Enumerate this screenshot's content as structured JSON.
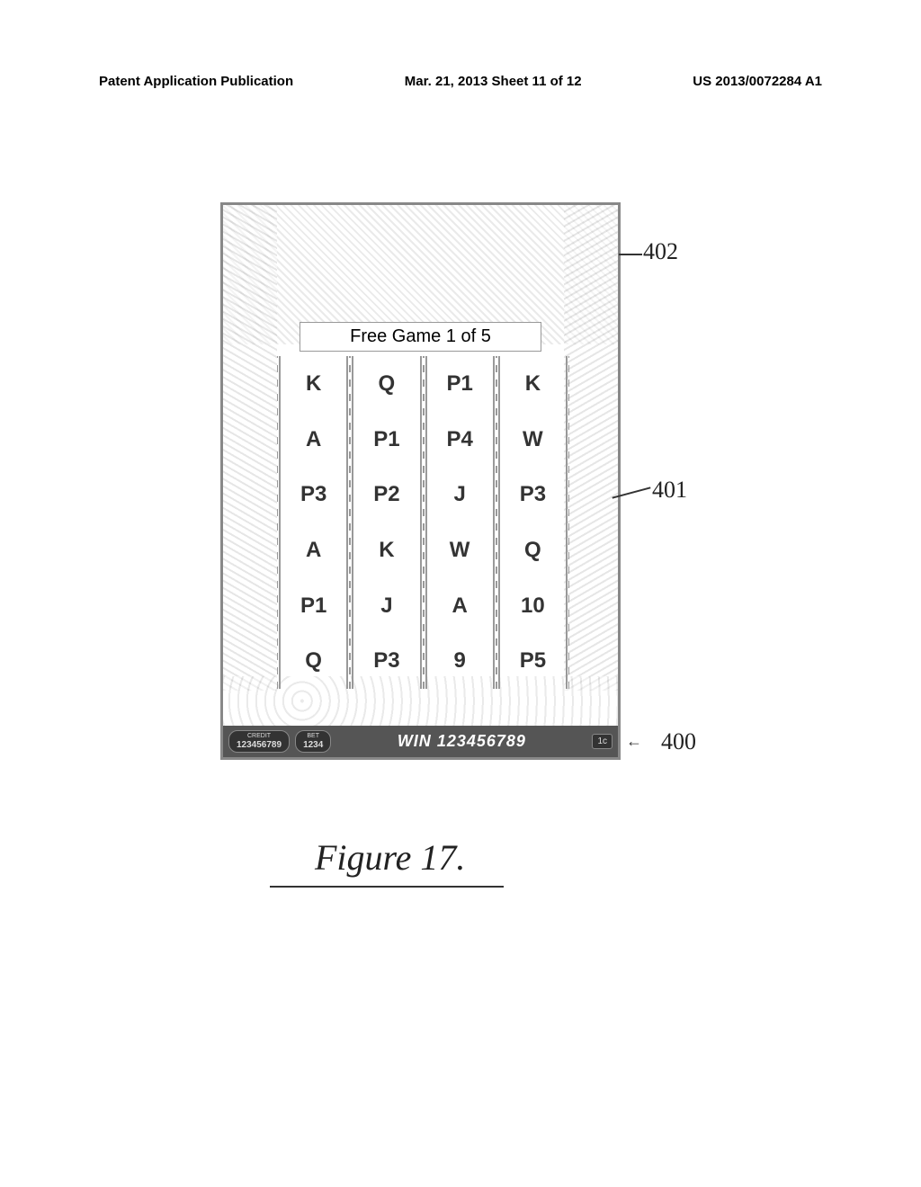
{
  "header": {
    "left": "Patent Application Publication",
    "center": "Mar. 21, 2013  Sheet 11 of 12",
    "right": "US 2013/0072284 A1"
  },
  "game": {
    "banner": "Free Game 1 of 5",
    "reels": [
      [
        "K",
        "A",
        "P3",
        "A",
        "P1",
        "Q"
      ],
      [
        "Q",
        "P1",
        "P2",
        "K",
        "J",
        "P3"
      ],
      [
        "P1",
        "P4",
        "J",
        "W",
        "A",
        "9"
      ],
      [
        "K",
        "W",
        "P3",
        "Q",
        "10",
        "P5"
      ]
    ],
    "status": {
      "credit_label": "CREDIT",
      "credit_value": "123456789",
      "bet_label": "BET",
      "bet_value": "1234",
      "win_label": "WIN",
      "win_value": "123456789",
      "denom": "1c"
    }
  },
  "callouts": {
    "c402": "402",
    "c401": "401",
    "c400": "400"
  },
  "figure_caption": "Figure 17."
}
